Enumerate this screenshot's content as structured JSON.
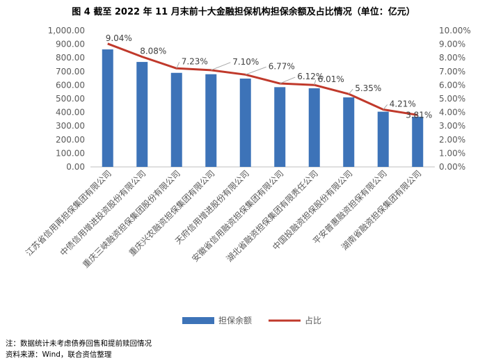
{
  "figure": {
    "title": "图 4   截至 2022 年 11 月末前十大金融担保机构担保余额及占比情况（单位：亿元）",
    "note": "注：数据统计未考虑债券回售和提前赎回情况",
    "source": "资料来源：Wind，联合资信整理"
  },
  "chart_data": {
    "type": "bar",
    "categories": [
      "江苏省信用再担保集团有限公司",
      "中债信用增进投资股份有限公司",
      "重庆三峡融资担保集团股份有限公司",
      "重庆兴农融资担保集团有限公司",
      "天府信用增进股份有限公司",
      "安徽省信用融资担保集团有限公司",
      "湖北省融资担保集团有限责任公司",
      "中国投融资担保股份有限公司",
      "平安普惠融资担保有限公司",
      "湖南省融资担保集团有限公司"
    ],
    "series": [
      {
        "name": "担保余额",
        "type": "bar",
        "axis": "left",
        "values": [
          862,
          770,
          690,
          680,
          648,
          585,
          577,
          510,
          405,
          368
        ],
        "color": "#3D73B8"
      },
      {
        "name": "占比",
        "type": "line",
        "axis": "right",
        "values": [
          9.04,
          8.08,
          7.23,
          7.1,
          6.77,
          6.12,
          6.01,
          5.35,
          4.21,
          3.81
        ],
        "labels": [
          "9.04%",
          "8.08%",
          "7.23%",
          "7.10%",
          "6.77%",
          "6.12%",
          "6.01%",
          "5.35%",
          "4.21%",
          "3.81%"
        ],
        "color": "#C0392B"
      }
    ],
    "left_axis": {
      "min": 0,
      "max": 1000,
      "step": 100,
      "ticks": [
        "0.00",
        "100.00",
        "200.00",
        "300.00",
        "400.00",
        "500.00",
        "600.00",
        "700.00",
        "800.00",
        "900.00",
        "1,000.00"
      ]
    },
    "right_axis": {
      "min": 0,
      "max": 10,
      "step": 1,
      "ticks": [
        "0.00%",
        "1.00%",
        "2.00%",
        "3.00%",
        "4.00%",
        "5.00%",
        "6.00%",
        "7.00%",
        "8.00%",
        "9.00%",
        "10.00%"
      ]
    },
    "grid": false,
    "legend": "bottom-center"
  }
}
